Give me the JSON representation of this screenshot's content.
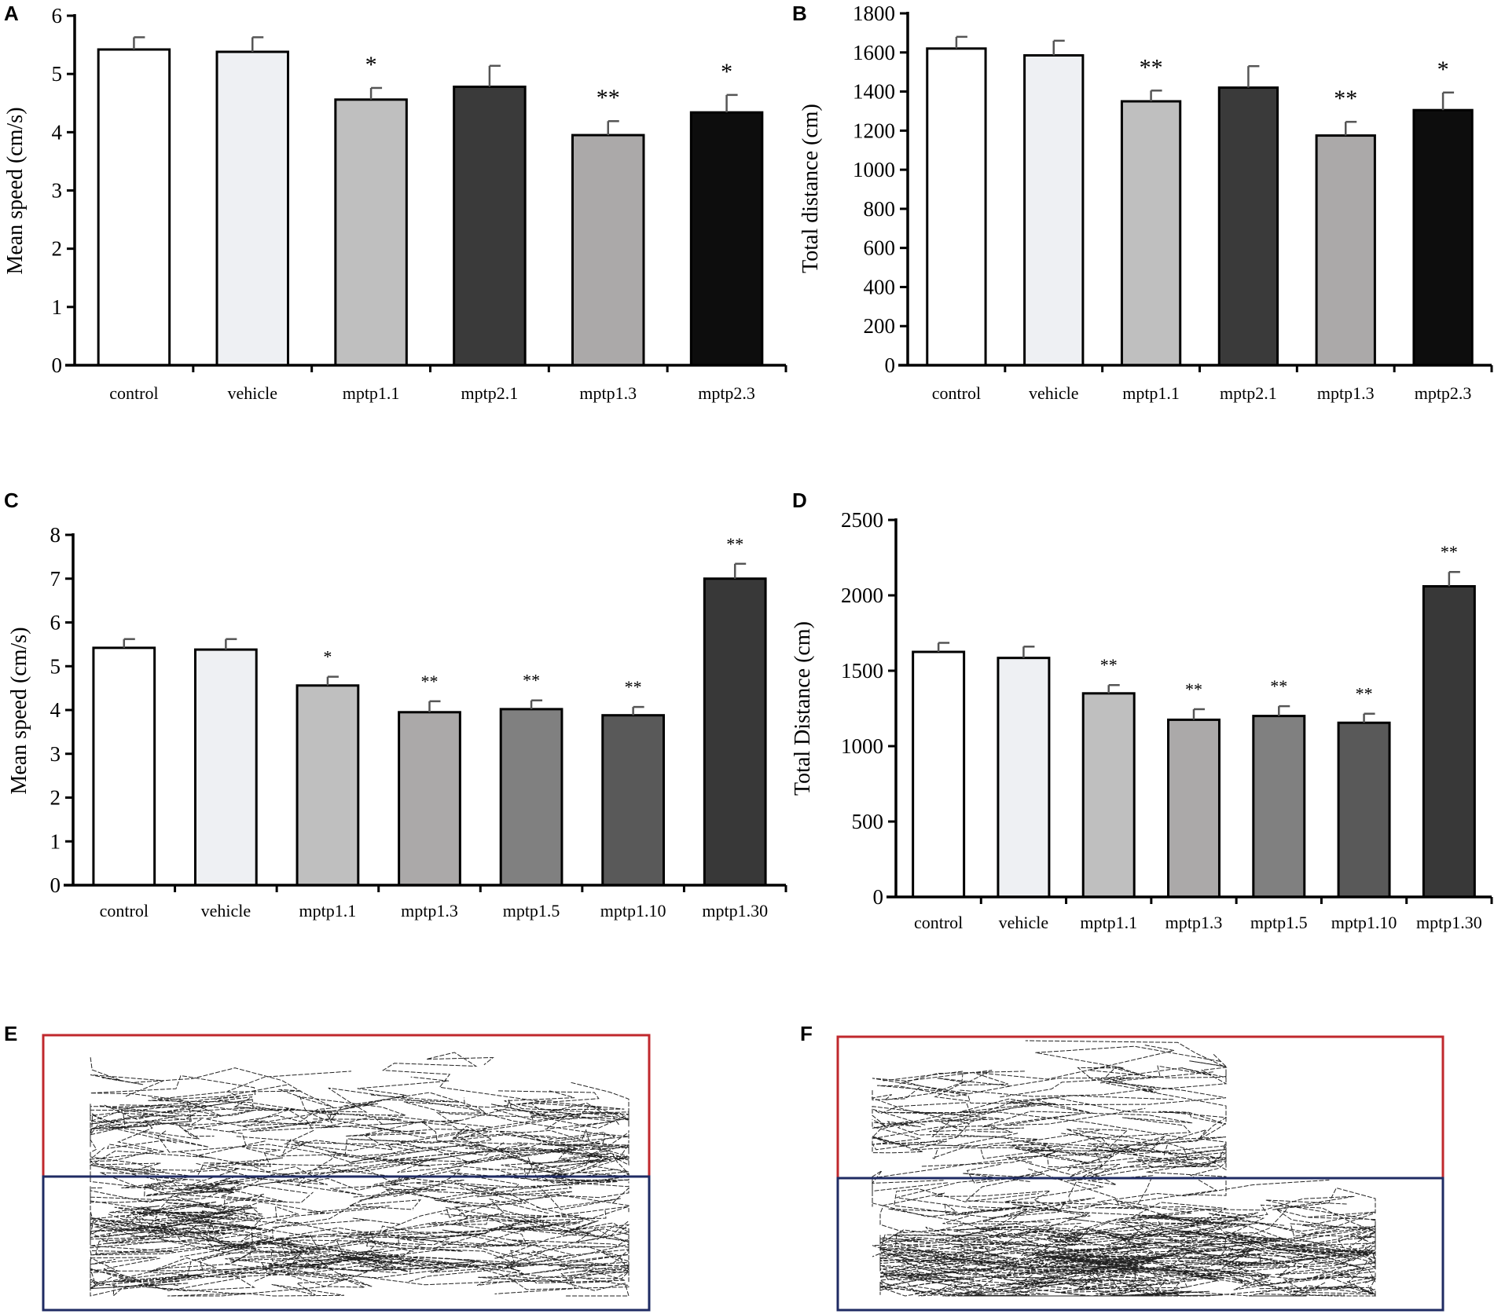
{
  "figure": {
    "panels": [
      {
        "letter": "A"
      },
      {
        "letter": "B"
      },
      {
        "letter": "C"
      },
      {
        "letter": "D"
      },
      {
        "letter": "E"
      },
      {
        "letter": "F"
      }
    ]
  },
  "chart_data": [
    {
      "panel": "A",
      "type": "bar",
      "title": "",
      "xlabel": "",
      "ylabel": "Mean speed (cm/s)",
      "ylim": [
        0,
        6
      ],
      "yticks": [
        0,
        1,
        2,
        3,
        4,
        5,
        6
      ],
      "categories": [
        "control",
        "vehicle",
        "mptp1.1",
        "mptp2.1",
        "mptp1.3",
        "mptp2.3"
      ],
      "values": [
        5.42,
        5.38,
        4.56,
        4.78,
        3.95,
        4.34
      ],
      "errors": [
        0.21,
        0.25,
        0.2,
        0.36,
        0.24,
        0.3
      ],
      "significance": [
        "",
        "",
        "*",
        "",
        "**",
        "*"
      ],
      "colors": [
        "#ffffff",
        "#eef0f3",
        "#bfbfbf",
        "#3a3a3a",
        "#aba9a9",
        "#0d0d0d"
      ]
    },
    {
      "panel": "B",
      "type": "bar",
      "title": "",
      "xlabel": "",
      "ylabel": "Total distance (cm)",
      "ylim": [
        0,
        1800
      ],
      "yticks": [
        0,
        200,
        400,
        600,
        800,
        1000,
        1200,
        1400,
        1600,
        1800
      ],
      "categories": [
        "control",
        "vehicle",
        "mptp1.1",
        "mptp2.1",
        "mptp1.3",
        "mptp2.3"
      ],
      "values": [
        1620,
        1585,
        1350,
        1420,
        1175,
        1305
      ],
      "errors": [
        60,
        75,
        55,
        110,
        70,
        90
      ],
      "significance": [
        "",
        "",
        "**",
        "",
        "**",
        "*"
      ],
      "colors": [
        "#ffffff",
        "#eef0f3",
        "#bfbfbf",
        "#3a3a3a",
        "#aba9a9",
        "#0d0d0d"
      ]
    },
    {
      "panel": "C",
      "type": "bar",
      "title": "",
      "xlabel": "",
      "ylabel": "Mean speed (cm/s)",
      "ylim": [
        0,
        8
      ],
      "yticks": [
        0,
        1,
        2,
        3,
        4,
        5,
        6,
        7,
        8
      ],
      "categories": [
        "control",
        "vehicle",
        "mptp1.1",
        "mptp1.3",
        "mptp1.5",
        "mptp1.10",
        "mptp1.30"
      ],
      "values": [
        5.42,
        5.38,
        4.56,
        3.95,
        4.02,
        3.88,
        7.0
      ],
      "errors": [
        0.2,
        0.24,
        0.2,
        0.25,
        0.2,
        0.19,
        0.34
      ],
      "significance": [
        "",
        "",
        "*",
        "**",
        "**",
        "**",
        "**"
      ],
      "colors": [
        "#ffffff",
        "#eef0f3",
        "#bfbfbf",
        "#aba9a9",
        "#808080",
        "#595959",
        "#383838"
      ]
    },
    {
      "panel": "D",
      "type": "bar",
      "title": "",
      "xlabel": "",
      "ylabel": "Total Distance (cm)",
      "ylim": [
        0,
        2500
      ],
      "yticks": [
        0,
        500,
        1000,
        1500,
        2000,
        2500
      ],
      "categories": [
        "control",
        "vehicle",
        "mptp1.1",
        "mptp1.3",
        "mptp1.5",
        "mptp1.10",
        "mptp1.30"
      ],
      "values": [
        1625,
        1585,
        1350,
        1175,
        1200,
        1155,
        2060
      ],
      "errors": [
        60,
        75,
        55,
        70,
        65,
        60,
        95
      ],
      "significance": [
        "",
        "",
        "**",
        "**",
        "**",
        "**",
        "**"
      ],
      "colors": [
        "#ffffff",
        "#eef0f3",
        "#bfbfbf",
        "#aba9a9",
        "#808080",
        "#595959",
        "#383838"
      ]
    }
  ],
  "tracks": [
    {
      "panel": "E",
      "top_zone_color": "#c0282d",
      "bottom_zone_color": "#1f2b63"
    },
    {
      "panel": "F",
      "top_zone_color": "#c0282d",
      "bottom_zone_color": "#1f2b63"
    }
  ]
}
